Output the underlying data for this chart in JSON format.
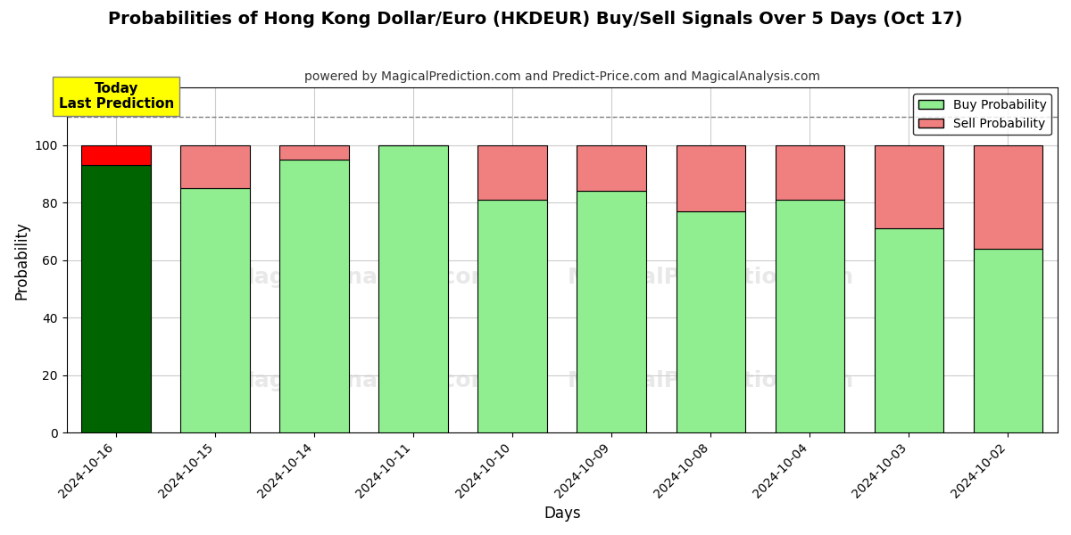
{
  "title": "Probabilities of Hong Kong Dollar/Euro (HKDEUR) Buy/Sell Signals Over 5 Days (Oct 17)",
  "subtitle": "powered by MagicalPrediction.com and Predict-Price.com and MagicalAnalysis.com",
  "xlabel": "Days",
  "ylabel": "Probability",
  "categories": [
    "2024-10-16",
    "2024-10-15",
    "2024-10-14",
    "2024-10-11",
    "2024-10-10",
    "2024-10-09",
    "2024-10-08",
    "2024-10-04",
    "2024-10-03",
    "2024-10-02"
  ],
  "buy_values": [
    93,
    85,
    95,
    100,
    81,
    84,
    77,
    81,
    71,
    64
  ],
  "sell_values": [
    7,
    15,
    5,
    0,
    19,
    16,
    23,
    19,
    29,
    36
  ],
  "first_bar_dark_green": true,
  "buy_color_dark": "#006400",
  "buy_color_light": "#90EE90",
  "sell_color_dark": "#FF0000",
  "sell_color_light": "#F08080",
  "annotation_text": "Today\nLast Prediction",
  "annotation_color": "#FFFF00",
  "dashed_line_y": 110,
  "ylim": [
    0,
    120
  ],
  "yticks": [
    0,
    20,
    40,
    60,
    80,
    100
  ],
  "watermark_texts": [
    "MagicalAnalysis.com",
    "MagicalPrediction.com"
  ],
  "legend_buy": "Buy Probability",
  "legend_sell": "Sell Probability",
  "background_color": "#ffffff",
  "grid_color": "#cccccc"
}
